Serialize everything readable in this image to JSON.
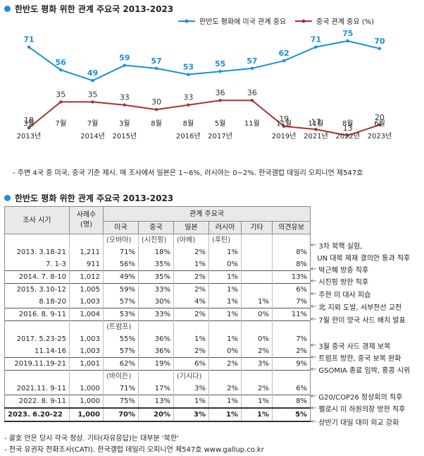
{
  "chart_data": [
    {
      "type": "line",
      "title": "한반도 평화 위한 관계 주요국 2013-2023",
      "categories": [
        {
          "month": "3월",
          "year": "2013년"
        },
        {
          "month": "7월",
          "year": ""
        },
        {
          "month": "7월",
          "year": "2014년"
        },
        {
          "month": "3월",
          "year": "2015년"
        },
        {
          "month": "8월",
          "year": ""
        },
        {
          "month": "8월",
          "year": "2016년"
        },
        {
          "month": "5월",
          "year": "2017년"
        },
        {
          "month": "11월",
          "year": ""
        },
        {
          "month": "11월",
          "year": "2019년"
        },
        {
          "month": "11월",
          "year": "2021년"
        },
        {
          "month": "8월",
          "year": "2022년"
        },
        {
          "month": "6월",
          "year": "2023년"
        }
      ],
      "series": [
        {
          "name": "한반도 평화에 미국 관계 중요",
          "color": "#1a8fd8",
          "values": [
            71,
            56,
            49,
            59,
            57,
            53,
            55,
            57,
            62,
            71,
            75,
            70
          ]
        },
        {
          "name": "중국 관계 중요 (%)",
          "color": "#a83232",
          "values": [
            18,
            35,
            35,
            33,
            30,
            33,
            36,
            36,
            19,
            17,
            13,
            20
          ]
        }
      ],
      "legend": "top-right",
      "grid": false
    }
  ],
  "section1": {
    "title": "한반도 평화 위한 관계 주요국 2013-2023"
  },
  "chart_note": "- 주변 4국 중 미국, 중국 기준 제시. 매 조사에서 일본은 1~6%, 러시아는 0~2%. 한국갤럽 데일리 오피니언 제547호",
  "section2": {
    "title": "한반도 평화 위한 관계 주요국 2013-2023"
  },
  "table": {
    "header": {
      "survey": "조사 시기",
      "sample": "사례수",
      "sample_unit": "(명)",
      "group": "관계 주요국",
      "cols": [
        "미국",
        "중국",
        "일본",
        "러시아",
        "기타",
        "의견유보"
      ]
    },
    "leader_rows": [
      [
        "",
        "",
        "(오바마)",
        "(시진핑)",
        "(아베)",
        "(푸틴)",
        "",
        ""
      ],
      [
        "",
        "",
        "(트럼프)",
        "",
        "",
        "",
        "",
        ""
      ],
      [
        "",
        "",
        "(바이든)",
        "",
        "(기시다)",
        "",
        "",
        ""
      ]
    ],
    "rows": [
      [
        "2013. 3.18-21",
        "1,211",
        "71%",
        "18%",
        "2%",
        "1%",
        "",
        "8%"
      ],
      [
        "7. 1-3",
        "911",
        "56%",
        "35%",
        "1%",
        "0%",
        "",
        "8%"
      ],
      [
        "2014. 7. 8-10",
        "1,012",
        "49%",
        "35%",
        "2%",
        "1%",
        "",
        "13%"
      ],
      [
        "2015. 3.10-12",
        "1,005",
        "59%",
        "33%",
        "2%",
        "1%",
        "",
        "6%"
      ],
      [
        "8.18-20",
        "1,003",
        "57%",
        "30%",
        "4%",
        "1%",
        "1%",
        "7%"
      ],
      [
        "2016. 8. 9-11",
        "1,004",
        "53%",
        "33%",
        "2%",
        "1%",
        "0%",
        "11%"
      ],
      [
        "2017. 5.23-25",
        "1,003",
        "55%",
        "36%",
        "1%",
        "1%",
        "0%",
        "7%"
      ],
      [
        "11.14-16",
        "1,003",
        "57%",
        "36%",
        "2%",
        "0%",
        "2%",
        "2%"
      ],
      [
        "2019.11.19-21",
        "1,001",
        "62%",
        "19%",
        "6%",
        "2%",
        "3%",
        "9%"
      ],
      [
        "2021.11. 9-11",
        "1,000",
        "71%",
        "17%",
        "3%",
        "2%",
        "2%",
        "6%"
      ],
      [
        "2022. 8. 9-11",
        "1,000",
        "75%",
        "13%",
        "1%",
        "1%",
        "1%",
        "8%"
      ],
      [
        "2023. 6.20-22",
        "1,000",
        "70%",
        "20%",
        "3%",
        "1%",
        "1%",
        "5%"
      ]
    ]
  },
  "annotations": [
    "3차 북핵 실험,",
    "UN 대북 제재 결의안 통과 직후",
    "박근혜 방중 직후",
    "시진핑 방한 직후",
    "주한 미 대사 피습",
    "北 지뢰 도발, 서부전선 교전",
    "7월 한미 양국 사드 배치 발표",
    "3월 중국 사드 경제 보복",
    "트럼프 방한, 중국 보복 완화",
    "GSOMIA 종료 임박, 홍콩 시위",
    "G20/COP26 정상회의 직후",
    "펠로시 미 하원의장 방한 직후",
    "상반기 대일 대미 외교 강화"
  ],
  "footnotes": [
    "- 괄호 안은 당시 각국 정상. 기타(자유응답)는 대부분 '북한'",
    "- 전국 유권자 전화조사(CATI). 한국갤럽 데일리 오피니언 제547호 www.gallup.co.kr"
  ]
}
